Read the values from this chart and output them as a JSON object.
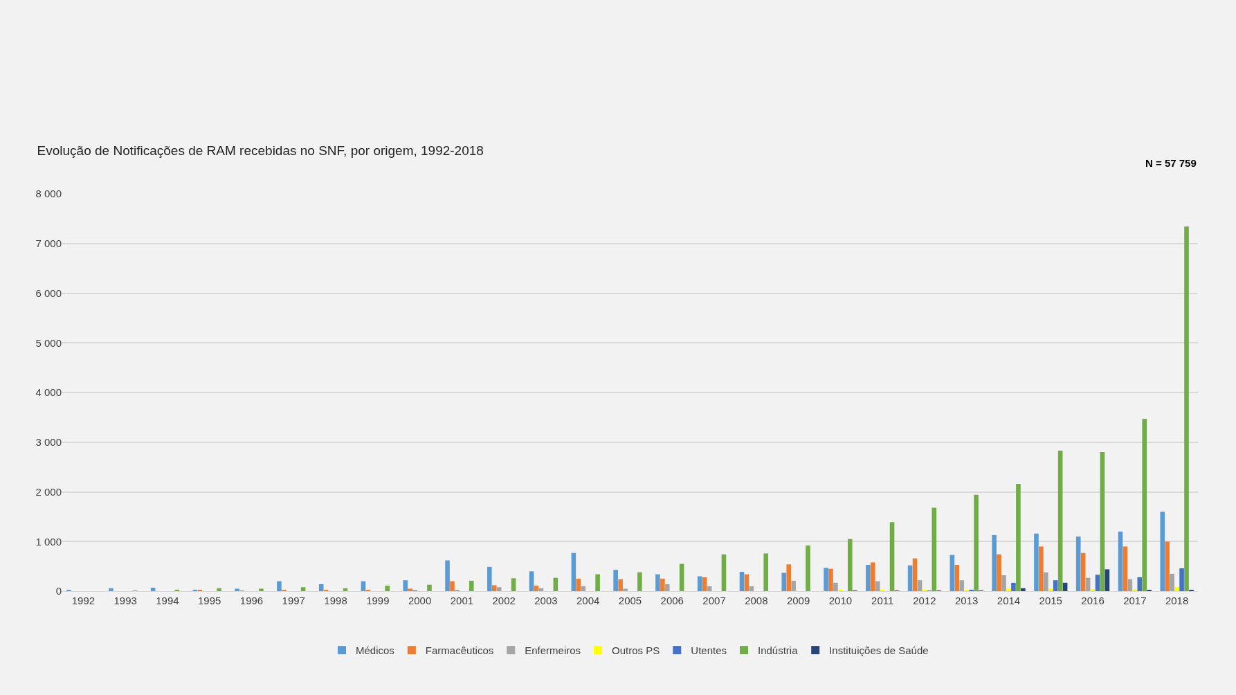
{
  "chart_data": {
    "type": "bar",
    "title": "Evolução de Notificações de RAM recebidas no SNF, por origem, 1992-2018",
    "annotations": [
      "N = 57 759"
    ],
    "categories": [
      "1992",
      "1993",
      "1994",
      "1995",
      "1996",
      "1997",
      "1998",
      "1999",
      "2000",
      "2001",
      "2002",
      "2003",
      "2004",
      "2005",
      "2006",
      "2007",
      "2008",
      "2009",
      "2010",
      "2011",
      "2012",
      "2013",
      "2014",
      "2015",
      "2016",
      "2017",
      "2018"
    ],
    "series": [
      {
        "name": "Médicos",
        "color": "#5b9bd5",
        "values": [
          20,
          60,
          70,
          30,
          50,
          200,
          140,
          200,
          220,
          620,
          490,
          400,
          770,
          430,
          340,
          300,
          390,
          370,
          470,
          530,
          520,
          730,
          1130,
          1160,
          1100,
          1200,
          1600
        ]
      },
      {
        "name": "Farmacêuticos",
        "color": "#ed7d31",
        "values": [
          0,
          0,
          0,
          20,
          10,
          20,
          20,
          20,
          50,
          200,
          120,
          110,
          250,
          240,
          250,
          280,
          340,
          540,
          450,
          580,
          660,
          530,
          740,
          900,
          770,
          900,
          1000
        ]
      },
      {
        "name": "Enfermeiros",
        "color": "#a5a5a5",
        "values": [
          0,
          0,
          0,
          0,
          0,
          0,
          0,
          0,
          20,
          20,
          80,
          60,
          100,
          50,
          140,
          100,
          100,
          210,
          170,
          200,
          220,
          220,
          320,
          380,
          270,
          240,
          350
        ]
      },
      {
        "name": "Outros PS",
        "color": "#ffff00",
        "values": [
          0,
          0,
          0,
          0,
          0,
          0,
          0,
          0,
          0,
          0,
          0,
          0,
          0,
          0,
          0,
          0,
          0,
          0,
          30,
          30,
          30,
          30,
          50,
          50,
          40,
          40,
          80
        ]
      },
      {
        "name": "Utentes",
        "color": "#4472c4",
        "values": [
          0,
          0,
          0,
          0,
          0,
          0,
          0,
          0,
          0,
          0,
          0,
          0,
          0,
          0,
          0,
          0,
          0,
          0,
          0,
          0,
          10,
          30,
          170,
          220,
          330,
          280,
          460
        ]
      },
      {
        "name": "Indústria",
        "color": "#70ad47",
        "values": [
          0,
          10,
          30,
          60,
          50,
          80,
          60,
          110,
          130,
          210,
          260,
          270,
          340,
          380,
          550,
          740,
          760,
          920,
          1050,
          1390,
          1680,
          1940,
          2160,
          2830,
          2800,
          3470,
          7340
        ]
      },
      {
        "name": "Instituições de Saúde",
        "color": "#264478",
        "values": [
          0,
          0,
          0,
          0,
          0,
          0,
          0,
          0,
          0,
          0,
          0,
          0,
          0,
          0,
          0,
          0,
          0,
          0,
          10,
          10,
          10,
          10,
          60,
          170,
          440,
          20,
          20
        ]
      }
    ],
    "ylim": [
      0,
      8000
    ],
    "yticks": [
      {
        "value": 0,
        "label": "0"
      },
      {
        "value": 1000,
        "label": "1 000"
      },
      {
        "value": 2000,
        "label": "2 000"
      },
      {
        "value": 3000,
        "label": "3 000"
      },
      {
        "value": 4000,
        "label": "4 000"
      },
      {
        "value": 5000,
        "label": "5 000"
      },
      {
        "value": 6000,
        "label": "6 000"
      },
      {
        "value": 7000,
        "label": "7 000"
      },
      {
        "value": 8000,
        "label": "8 000"
      }
    ],
    "grid": "y",
    "legend": "bottom"
  }
}
